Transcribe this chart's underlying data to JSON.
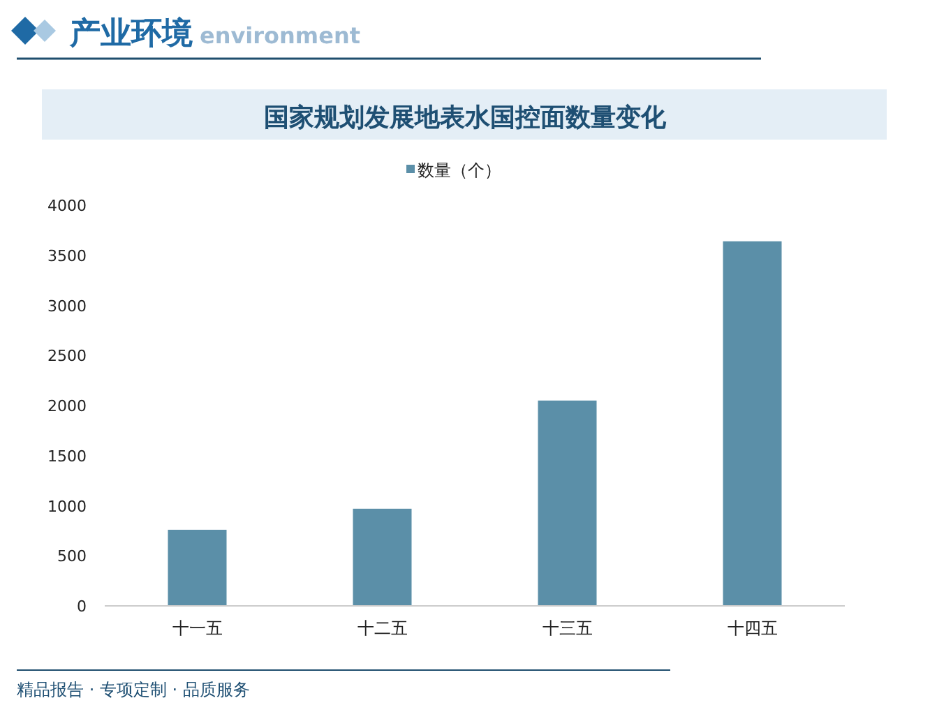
{
  "chart_data": {
    "type": "bar",
    "title": "国家规划发展地表水国控面数量变化",
    "annotations": [
      "产业环境",
      "environment",
      "精品报告 · 专项定制 · 品质服务"
    ],
    "categories": [
      "十一五",
      "十二五",
      "十三五",
      "十四五"
    ],
    "series": [
      {
        "name": "数量（个）",
        "color": "#5b8fa8",
        "values": [
          760,
          970,
          2050,
          3640
        ]
      }
    ],
    "ylim": [
      0,
      4000
    ],
    "yticks": [
      0,
      500,
      1000,
      1500,
      2000,
      2500,
      3000,
      3500,
      4000
    ],
    "legend": "top"
  }
}
